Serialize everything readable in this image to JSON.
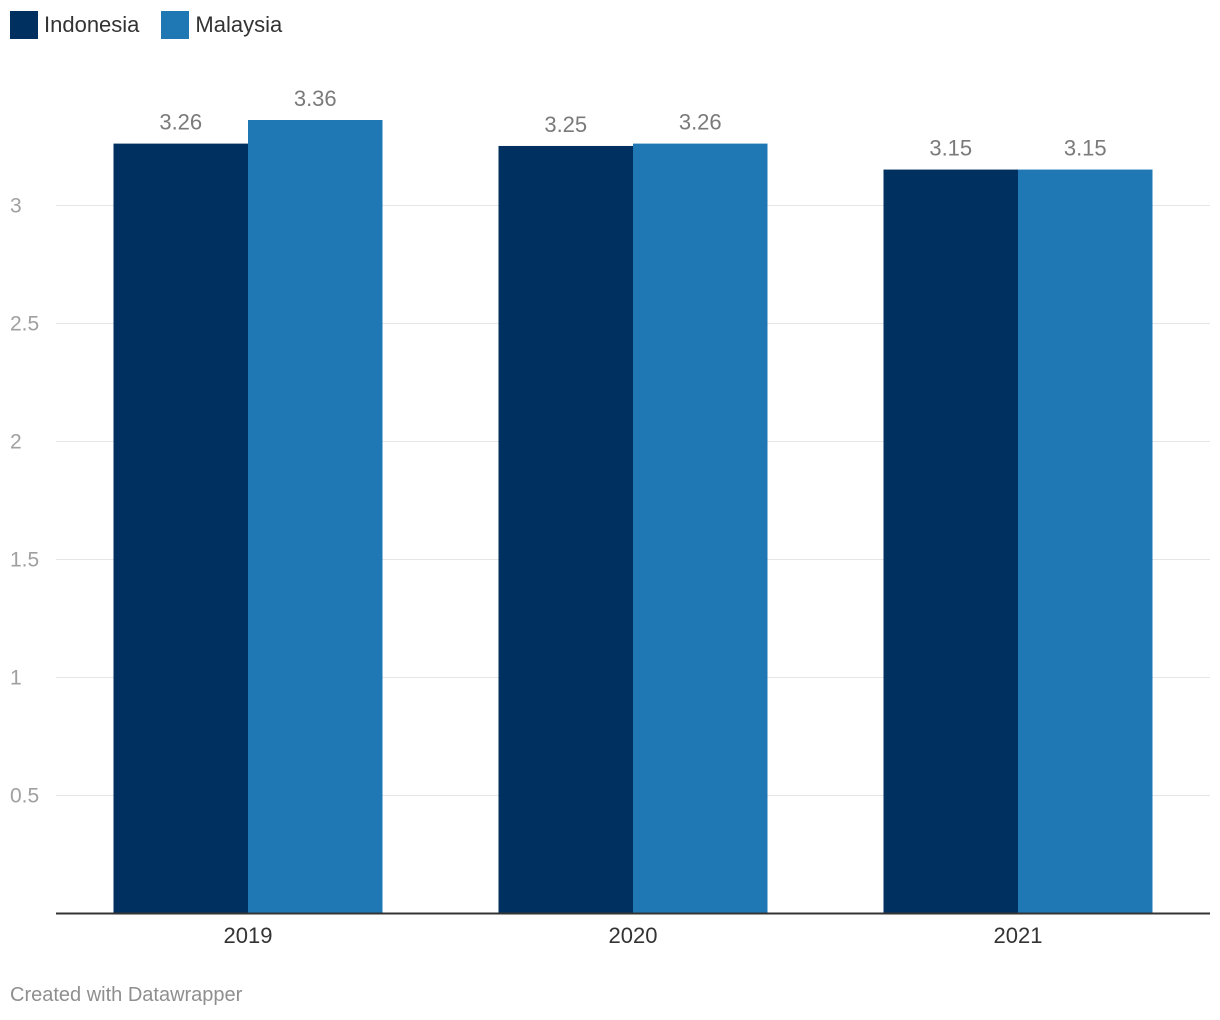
{
  "chart_data": {
    "type": "bar",
    "title": "",
    "xlabel": "",
    "ylabel": "",
    "categories": [
      "2019",
      "2020",
      "2021"
    ],
    "series": [
      {
        "name": "Indonesia",
        "values": [
          3.26,
          3.25,
          3.15
        ],
        "value_labels": [
          "3.26",
          "3.25",
          "3.15"
        ],
        "color": "#00305f"
      },
      {
        "name": "Malaysia",
        "values": [
          3.36,
          3.26,
          3.15
        ],
        "value_labels": [
          "3.36",
          "3.26",
          "3.15"
        ],
        "color": "#1f78b4"
      }
    ],
    "ylim": [
      0,
      3.36
    ],
    "yticks": [
      0.5,
      1,
      1.5,
      2,
      2.5,
      3
    ],
    "ytick_labels": [
      "0.5",
      "1",
      "1.5",
      "2",
      "2.5",
      "3"
    ],
    "grid": true,
    "legend_position": "top-left"
  },
  "colors": {
    "grid": "#e6e6e6",
    "axis": "#333333",
    "tick_label": "#a0a0a0",
    "value_label": "#7a7a7a",
    "category_label": "#333333"
  },
  "footer": {
    "credit": "Created with Datawrapper"
  }
}
